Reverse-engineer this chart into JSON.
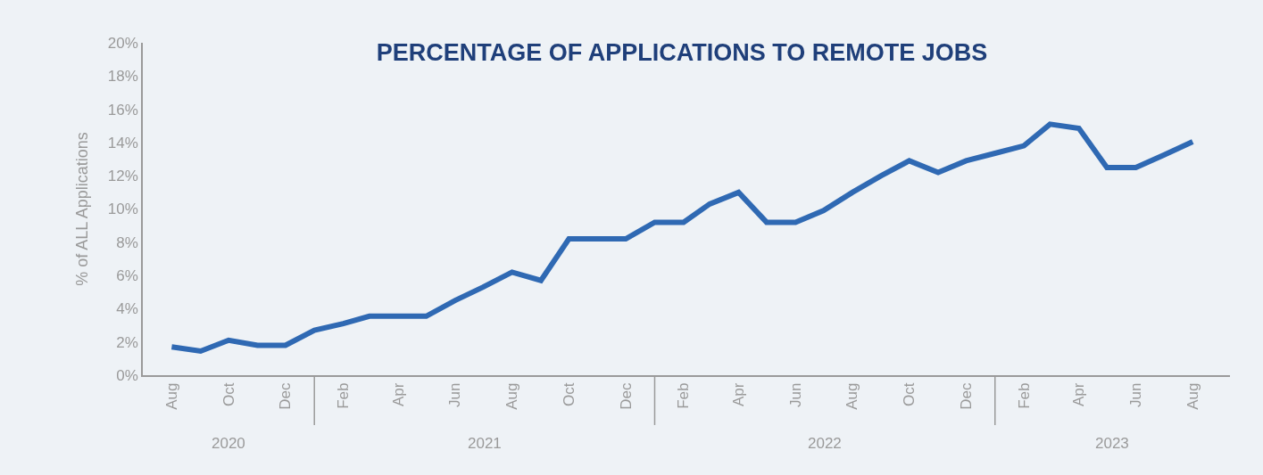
{
  "chart_data": {
    "type": "line",
    "title": "PERCENTAGE OF APPLICATIONS TO REMOTE JOBS",
    "ylabel": "% of ALL Applications",
    "x": [
      "2020-08",
      "2020-09",
      "2020-10",
      "2020-11",
      "2020-12",
      "2021-01",
      "2021-02",
      "2021-03",
      "2021-04",
      "2021-05",
      "2021-06",
      "2021-07",
      "2021-08",
      "2021-09",
      "2021-10",
      "2021-11",
      "2021-12",
      "2022-01",
      "2022-02",
      "2022-03",
      "2022-04",
      "2022-05",
      "2022-06",
      "2022-07",
      "2022-08",
      "2022-09",
      "2022-10",
      "2022-11",
      "2022-12",
      "2023-01",
      "2023-02",
      "2023-03",
      "2023-04",
      "2023-05",
      "2023-06",
      "2023-07",
      "2023-08"
    ],
    "series": [
      {
        "color": "#2f69b3",
        "values": [
          1.7,
          1.45,
          2.1,
          1.8,
          1.8,
          2.7,
          3.1,
          3.55,
          3.55,
          3.55,
          4.5,
          5.3,
          6.2,
          5.7,
          8.2,
          8.2,
          8.2,
          9.2,
          9.2,
          10.3,
          11.0,
          9.2,
          9.2,
          9.9,
          11.0,
          12.0,
          12.9,
          12.2,
          12.9,
          13.35,
          13.8,
          15.1,
          14.85,
          12.5,
          12.5,
          13.25,
          14.05
        ]
      }
    ],
    "xlim": [
      "2020-07-01",
      "2023-09-10"
    ],
    "xticks": [
      {
        "value": "2020-08",
        "label": "Aug"
      },
      {
        "value": "2020-10",
        "label": "Oct"
      },
      {
        "value": "2020-12",
        "label": "Dec"
      },
      {
        "value": "2021-02",
        "label": "Feb"
      },
      {
        "value": "2021-04",
        "label": "Apr"
      },
      {
        "value": "2021-06",
        "label": "Jun"
      },
      {
        "value": "2021-08",
        "label": "Aug"
      },
      {
        "value": "2021-10",
        "label": "Oct"
      },
      {
        "value": "2021-12",
        "label": "Dec"
      },
      {
        "value": "2022-02",
        "label": "Feb"
      },
      {
        "value": "2022-04",
        "label": "Apr"
      },
      {
        "value": "2022-06",
        "label": "Jun"
      },
      {
        "value": "2022-08",
        "label": "Aug"
      },
      {
        "value": "2022-10",
        "label": "Oct"
      },
      {
        "value": "2022-12",
        "label": "Dec"
      },
      {
        "value": "2023-02",
        "label": "Feb"
      },
      {
        "value": "2023-04",
        "label": "Apr"
      },
      {
        "value": "2023-06",
        "label": "Jun"
      },
      {
        "value": "2023-08",
        "label": "Aug"
      }
    ],
    "ylim": [
      0,
      20
    ],
    "yticks": [
      {
        "value": 0,
        "label": "0%"
      },
      {
        "value": 2,
        "label": "2%"
      },
      {
        "value": 4,
        "label": "4%"
      },
      {
        "value": 6,
        "label": "6%"
      },
      {
        "value": 8,
        "label": "8%"
      },
      {
        "value": 10,
        "label": "10%"
      },
      {
        "value": 12,
        "label": "12%"
      },
      {
        "value": 14,
        "label": "14%"
      },
      {
        "value": 16,
        "label": "16%"
      },
      {
        "value": 18,
        "label": "18%"
      },
      {
        "value": 20,
        "label": "20%"
      }
    ],
    "annotations": [
      "2020",
      "2021",
      "2022",
      "2023"
    ],
    "grid": false,
    "marker": "none",
    "line_style": "solid"
  }
}
